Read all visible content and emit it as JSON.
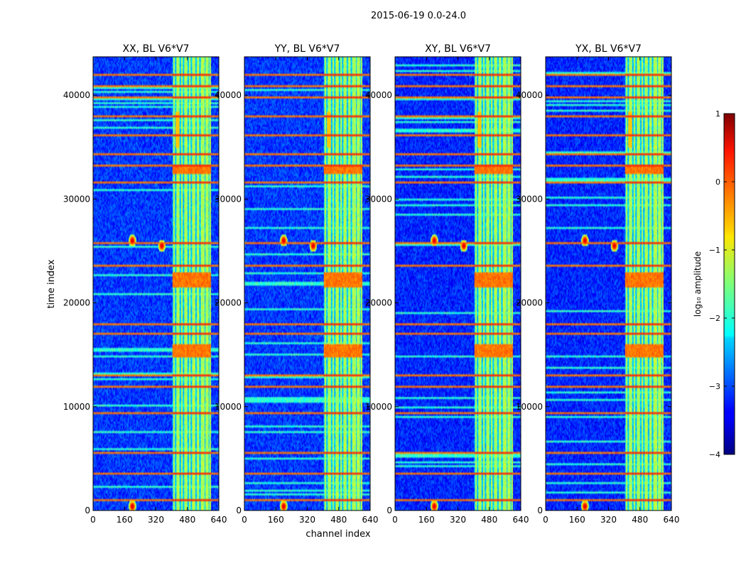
{
  "figure": {
    "suptitle": "2015-06-19 0.0-24.0",
    "xlabel": "channel index",
    "ylabel": "time index",
    "colorbar_label": "log₁₀ amplitude"
  },
  "chart_data": {
    "type": "heatmap",
    "panels": [
      {
        "title": "XX, BL V6*V7",
        "pol": "XX"
      },
      {
        "title": "YY, BL V6*V7",
        "pol": "YY"
      },
      {
        "title": "XY, BL V6*V7",
        "pol": "XY"
      },
      {
        "title": "YX, BL V6*V7",
        "pol": "YX"
      }
    ],
    "x": {
      "label": "channel index",
      "range": [
        0,
        640
      ],
      "ticks": [
        0,
        160,
        320,
        480,
        640
      ],
      "tick_labels": [
        "0",
        "160",
        "320",
        "480",
        "640"
      ]
    },
    "y": {
      "label": "time index",
      "range": [
        0,
        43700
      ],
      "ticks": [
        0,
        10000,
        20000,
        30000,
        40000
      ],
      "tick_labels": [
        "0",
        "10000",
        "20000",
        "30000",
        "40000"
      ]
    },
    "colorbar": {
      "label": "log₁₀ amplitude",
      "range": [
        -4,
        1
      ],
      "ticks": [
        1,
        0,
        -1,
        -2,
        -3,
        -4
      ],
      "tick_labels": [
        "1",
        "0",
        "−1",
        "−2",
        "−3",
        "−4"
      ],
      "colormap": "jet"
    },
    "features": {
      "rfi_band_channels": [
        [
          405,
          600
        ]
      ],
      "rfi_stripe_channels": [
        405,
        420,
        445,
        460,
        485,
        500,
        525,
        545,
        570,
        590
      ],
      "bright_blocks_time": [
        [
          14800,
          16100
        ],
        [
          21500,
          23000
        ],
        [
          32400,
          33300
        ]
      ],
      "broadband_lines_time": [
        1100,
        3700,
        5700,
        9500,
        12000,
        13200,
        17200,
        18100,
        23600,
        25800,
        31700,
        33300,
        34500,
        36200,
        38000,
        39800,
        41000,
        42000
      ],
      "spot_channels_time": [
        [
          200,
          26000
        ],
        [
          350,
          25500
        ],
        [
          200,
          400
        ]
      ]
    }
  },
  "colors": {
    "background": "#ffffff",
    "axis": "#000000",
    "jet_low": "#00007f",
    "jet_high": "#7f0000"
  }
}
